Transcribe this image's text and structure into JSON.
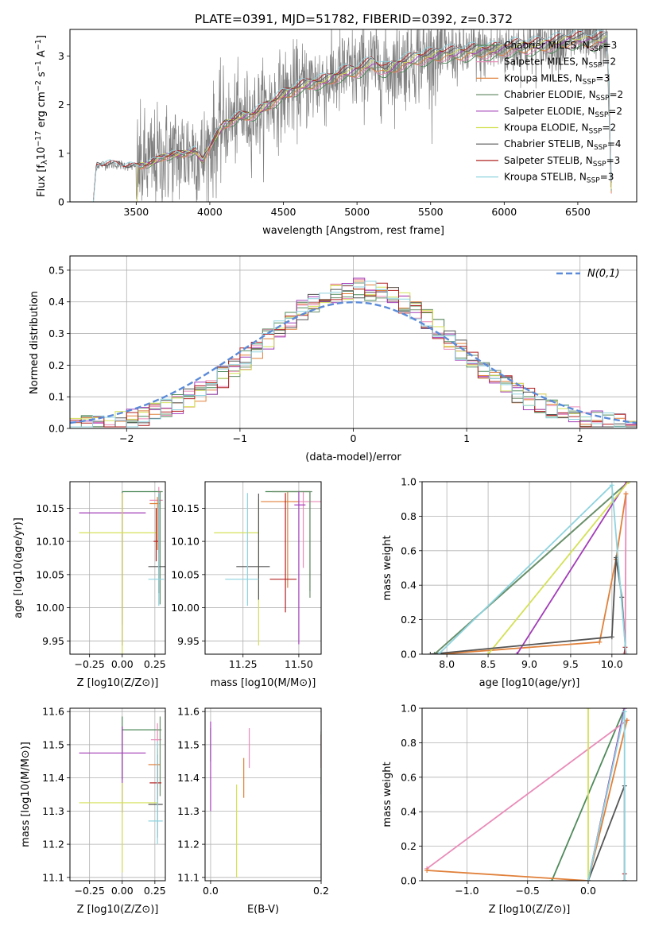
{
  "figure": {
    "title": "PLATE=0391, MJD=51782, FIBERID=0392, z=0.372"
  },
  "colors": {
    "data_gray": "#808080",
    "grid": "#b0b0b0",
    "gauss": "#5b8bd8"
  },
  "models": [
    {
      "name": "Chabrier MILES, N_SSP=3",
      "label_main": "Chabrier MILES, N",
      "sub": "SSP",
      "label_tail": "=3",
      "color": "#4f8a5b"
    },
    {
      "name": "Salpeter MILES, N_SSP=2",
      "label_main": "Salpeter MILES, N",
      "sub": "SSP",
      "label_tail": "=2",
      "color": "#e98bb8"
    },
    {
      "name": "Kroupa MILES, N_SSP=3",
      "label_main": "Kroupa MILES, N",
      "sub": "SSP",
      "label_tail": "=3",
      "color": "#e0803a"
    },
    {
      "name": "Chabrier ELODIE, N_SSP=2",
      "label_main": "Chabrier ELODIE, N",
      "sub": "SSP",
      "label_tail": "=2",
      "color": "#6a8f6a"
    },
    {
      "name": "Salpeter ELODIE, N_SSP=2",
      "label_main": "Salpeter ELODIE, N",
      "sub": "SSP",
      "label_tail": "=2",
      "color": "#a23db8"
    },
    {
      "name": "Kroupa ELODIE, N_SSP=2",
      "label_main": "Kroupa ELODIE, N",
      "sub": "SSP",
      "label_tail": "=2",
      "color": "#d4e157"
    },
    {
      "name": "Chabrier STELIB, N_SSP=4",
      "label_main": "Chabrier STELIB, N",
      "sub": "SSP",
      "label_tail": "=4",
      "color": "#555555"
    },
    {
      "name": "Salpeter STELIB, N_SSP=3",
      "label_main": "Salpeter STELIB, N",
      "sub": "SSP",
      "label_tail": "=3",
      "color": "#b22222"
    },
    {
      "name": "Kroupa STELIB, N_SSP=3",
      "label_main": "Kroupa STELIB, N",
      "sub": "SSP",
      "label_tail": "=3",
      "color": "#8fd3df"
    }
  ],
  "chart_data": [
    {
      "id": "spectrum",
      "type": "line",
      "title": "PLATE=0391, MJD=51782, FIBERID=0392, z=0.372",
      "xlabel": "wavelength [Angstrom, rest frame]",
      "ylabel": "Flux [f_λ 10^-17 erg cm^-2 s^-1 A^-1]",
      "xlim": [
        3050,
        6900
      ],
      "ylim": [
        0,
        3.55
      ],
      "xticks": [
        3500,
        4000,
        4500,
        5000,
        5500,
        6000,
        6500
      ],
      "yticks": [
        0,
        1,
        2,
        3
      ],
      "legend": "upper right",
      "continuum": [
        [
          3210,
          0.0
        ],
        [
          3230,
          0.75
        ],
        [
          3300,
          0.78
        ],
        [
          3400,
          0.76
        ],
        [
          3500,
          0.72
        ],
        [
          3600,
          0.8
        ],
        [
          3700,
          0.95
        ],
        [
          3800,
          0.98
        ],
        [
          3900,
          1.05
        ],
        [
          3950,
          0.85
        ],
        [
          4000,
          1.15
        ],
        [
          4100,
          1.6
        ],
        [
          4200,
          1.75
        ],
        [
          4300,
          1.8
        ],
        [
          4400,
          2.0
        ],
        [
          4500,
          2.2
        ],
        [
          4600,
          2.35
        ],
        [
          4700,
          2.45
        ],
        [
          4800,
          2.5
        ],
        [
          4900,
          2.65
        ],
        [
          5000,
          2.7
        ],
        [
          5100,
          2.85
        ],
        [
          5200,
          2.7
        ],
        [
          5300,
          2.85
        ],
        [
          5400,
          2.95
        ],
        [
          5500,
          3.0
        ],
        [
          5600,
          3.05
        ],
        [
          5700,
          3.05
        ],
        [
          5800,
          3.1
        ],
        [
          5900,
          3.1
        ],
        [
          6000,
          3.15
        ],
        [
          6100,
          3.2
        ],
        [
          6200,
          3.2
        ],
        [
          6300,
          3.25
        ],
        [
          6400,
          3.3
        ],
        [
          6500,
          3.35
        ],
        [
          6600,
          3.3
        ],
        [
          6700,
          3.35
        ],
        [
          6730,
          0.0
        ]
      ]
    },
    {
      "id": "residuals",
      "type": "histogram",
      "xlabel": "(data-model)/error",
      "ylabel": "Normed distribution",
      "xlim": [
        -2.5,
        2.5
      ],
      "ylim": [
        0,
        0.545
      ],
      "xticks": [
        -2,
        -1,
        0,
        1,
        2
      ],
      "yticks": [
        0.0,
        0.1,
        0.2,
        0.3,
        0.4,
        0.5
      ],
      "bin_edges_start": -2.5,
      "bin_width": 0.1,
      "gauss_label": "N(0,1)",
      "legend": "upper right"
    },
    {
      "id": "age-vs-Z",
      "type": "scatter",
      "xlabel": "Z [log10(Z/Z⊙)]",
      "ylabel": "age [log10(age/yr)]",
      "xlim": [
        -0.4,
        0.33
      ],
      "ylim": [
        9.93,
        10.19
      ],
      "xticks": [
        -0.25,
        0.0,
        0.25
      ],
      "yticks": [
        9.95,
        10.0,
        10.05,
        10.1,
        10.15
      ],
      "points": [
        {
          "x": 0.0,
          "y": 10.175,
          "xerr": [
            0.0,
            0.3
          ],
          "yerr": [
            0.2,
            0.0
          ],
          "c": 0
        },
        {
          "x": 0.28,
          "y": 10.162,
          "xerr": [
            0.07,
            0.03
          ],
          "yerr": [
            0.08,
            0.02
          ],
          "c": 1
        },
        {
          "x": 0.27,
          "y": 10.157,
          "xerr": [
            0.06,
            0.02
          ],
          "yerr": [
            0.07,
            0.01
          ],
          "c": 2
        },
        {
          "x": 0.29,
          "y": 10.175,
          "xerr": [
            0.02,
            0.02
          ],
          "yerr": [
            0.17,
            0.0
          ],
          "c": 3
        },
        {
          "x": 0.0,
          "y": 10.143,
          "xerr": [
            0.33,
            0.18
          ],
          "yerr": [
            0.2,
            0.03
          ],
          "c": 4
        },
        {
          "x": 0.0,
          "y": 10.113,
          "xerr": [
            0.33,
            0.27
          ],
          "yerr": [
            0.2,
            0.06
          ],
          "c": 5
        },
        {
          "x": 0.28,
          "y": 10.062,
          "xerr": [
            0.08,
            0.05
          ],
          "yerr": [
            0.04,
            0.11
          ],
          "c": 6
        },
        {
          "x": 0.26,
          "y": 10.1,
          "xerr": [
            0.02,
            0.02
          ],
          "yerr": [
            0.03,
            0.05
          ],
          "c": 7
        },
        {
          "x": 0.28,
          "y": 10.043,
          "xerr": [
            0.08,
            0.04
          ],
          "yerr": [
            0.04,
            0.13
          ],
          "c": 8
        }
      ]
    },
    {
      "id": "age-vs-mass",
      "type": "scatter",
      "xlabel": "mass [log10(M/M⊙)]",
      "ylabel": "",
      "xlim": [
        11.08,
        11.6
      ],
      "ylim": [
        9.93,
        10.19
      ],
      "xticks": [
        11.25,
        11.5
      ],
      "yticks": [
        9.95,
        10.0,
        10.05,
        10.1,
        10.15
      ],
      "points": [
        {
          "x": 11.55,
          "y": 10.175,
          "xerr": [
            0.2,
            0.0
          ],
          "yerr": [
            0.15,
            0.0
          ],
          "c": 0
        },
        {
          "x": 11.52,
          "y": 10.16,
          "xerr": [
            0.05,
            0.08
          ],
          "yerr": [
            0.1,
            0.015
          ],
          "c": 1
        },
        {
          "x": 11.45,
          "y": 10.16,
          "xerr": [
            0.12,
            0.05
          ],
          "yerr": [
            0.13,
            0.015
          ],
          "c": 2
        },
        {
          "x": 11.55,
          "y": 10.175,
          "xerr": [
            0.17,
            0.01
          ],
          "yerr": [
            0.16,
            0.0
          ],
          "c": 3
        },
        {
          "x": 11.5,
          "y": 10.155,
          "xerr": [
            0.02,
            0.03
          ],
          "yerr": [
            0.21,
            0.02
          ],
          "c": 4
        },
        {
          "x": 11.32,
          "y": 10.113,
          "xerr": [
            0.2,
            0.0
          ],
          "yerr": [
            0.17,
            0.05
          ],
          "c": 5
        },
        {
          "x": 11.32,
          "y": 10.062,
          "xerr": [
            0.1,
            0.05
          ],
          "yerr": [
            0.05,
            0.11
          ],
          "c": 6
        },
        {
          "x": 11.44,
          "y": 10.043,
          "xerr": [
            0.07,
            0.05
          ],
          "yerr": [
            0.05,
            0.13
          ],
          "c": 7
        },
        {
          "x": 11.27,
          "y": 10.043,
          "xerr": [
            0.1,
            0.05
          ],
          "yerr": [
            0.04,
            0.13
          ],
          "c": 8
        }
      ]
    },
    {
      "id": "mass-weight-vs-age",
      "type": "line",
      "xlabel": "age [log10(age/yr)]",
      "ylabel": "mass weight",
      "xlim": [
        7.7,
        10.3
      ],
      "ylim": [
        0,
        1.0
      ],
      "xticks": [
        8.0,
        8.5,
        9.0,
        9.5,
        10.0
      ],
      "yticks": [
        0.0,
        0.2,
        0.4,
        0.6,
        0.8,
        1.0
      ],
      "series": [
        {
          "c": 0,
          "x": [
            7.85,
            10.2
          ],
          "y": [
            0.0,
            1.0
          ]
        },
        {
          "c": 1,
          "x": [
            10.16,
            10.17
          ],
          "y": [
            0.0,
            0.93
          ]
        },
        {
          "c": 2,
          "x": [
            7.9,
            9.85,
            10.05,
            10.17
          ],
          "y": [
            0.0,
            0.07,
            0.55,
            0.93
          ]
        },
        {
          "c": 3,
          "x": [
            7.85,
            10.2
          ],
          "y": [
            0.0,
            1.0
          ]
        },
        {
          "c": 4,
          "x": [
            8.85,
            10.18
          ],
          "y": [
            0.0,
            1.0
          ]
        },
        {
          "c": 5,
          "x": [
            8.5,
            10.2
          ],
          "y": [
            0.0,
            1.0
          ]
        },
        {
          "c": 6,
          "x": [
            7.8,
            10.0,
            10.05,
            10.12,
            10.17
          ],
          "y": [
            0.0,
            0.1,
            0.56,
            0.33,
            0.0
          ]
        },
        {
          "c": 7,
          "x": [
            10.15,
            10.16
          ],
          "y": [
            0.0,
            0.04
          ]
        },
        {
          "c": 8,
          "x": [
            7.9,
            10.0,
            10.17
          ],
          "y": [
            0.0,
            0.98,
            0.0
          ]
        }
      ]
    },
    {
      "id": "mass-vs-Z",
      "type": "scatter",
      "xlabel": "Z [log10(Z/Z⊙)]",
      "ylabel": "mass [log10(M/M⊙)]",
      "xlim": [
        -0.4,
        0.33
      ],
      "ylim": [
        11.09,
        11.61
      ],
      "xticks": [
        -0.25,
        0.0,
        0.25
      ],
      "yticks": [
        11.1,
        11.2,
        11.3,
        11.4,
        11.5,
        11.6
      ],
      "points": [
        {
          "x": 0.0,
          "y": 11.545,
          "xerr": [
            0.0,
            0.3
          ],
          "yerr": [
            0.15,
            0.04
          ],
          "c": 0
        },
        {
          "x": 0.27,
          "y": 11.515,
          "xerr": [
            0.05,
            0.03
          ],
          "yerr": [
            0.05,
            0.05
          ],
          "c": 1
        },
        {
          "x": 0.27,
          "y": 11.44,
          "xerr": [
            0.07,
            0.02
          ],
          "yerr": [
            0.07,
            0.05
          ],
          "c": 2
        },
        {
          "x": 0.29,
          "y": 11.545,
          "xerr": [
            0.02,
            0.01
          ],
          "yerr": [
            0.2,
            0.04
          ],
          "c": 3
        },
        {
          "x": 0.0,
          "y": 11.475,
          "xerr": [
            0.33,
            0.18
          ],
          "yerr": [
            0.18,
            0.08
          ],
          "c": 4
        },
        {
          "x": 0.0,
          "y": 11.325,
          "xerr": [
            0.33,
            0.27
          ],
          "yerr": [
            0.21,
            0.06
          ],
          "c": 5
        },
        {
          "x": 0.27,
          "y": 11.32,
          "xerr": [
            0.07,
            0.04
          ],
          "yerr": [
            0.1,
            0.15
          ],
          "c": 6
        },
        {
          "x": 0.27,
          "y": 11.385,
          "xerr": [
            0.06,
            0.03
          ],
          "yerr": [
            0.05,
            0.06
          ],
          "c": 7
        },
        {
          "x": 0.27,
          "y": 11.27,
          "xerr": [
            0.07,
            0.04
          ],
          "yerr": [
            0.07,
            0.24
          ],
          "c": 8
        }
      ]
    },
    {
      "id": "mass-vs-ebv",
      "type": "scatter",
      "xlabel": "E(B-V)",
      "ylabel": "",
      "xlim": [
        -0.01,
        0.2
      ],
      "ylim": [
        11.09,
        11.61
      ],
      "xticks": [
        0.0,
        0.2
      ],
      "yticks": [
        11.1,
        11.2,
        11.3,
        11.4,
        11.5,
        11.6
      ],
      "points": [
        {
          "x": 0.0,
          "y": 11.5,
          "xerr": [
            0,
            0
          ],
          "yerr": [
            0.05,
            0.05
          ],
          "c": 0
        },
        {
          "x": 0.07,
          "y": 11.5,
          "xerr": [
            0,
            0
          ],
          "yerr": [
            0.07,
            0.05
          ],
          "c": 1
        },
        {
          "x": 0.06,
          "y": 11.41,
          "xerr": [
            0,
            0
          ],
          "yerr": [
            0.07,
            0.05
          ],
          "c": 2
        },
        {
          "x": 0.2,
          "y": 11.5,
          "xerr": [
            0,
            0
          ],
          "yerr": [
            0.15,
            0.04
          ],
          "c": 3
        },
        {
          "x": 0.0,
          "y": 11.47,
          "xerr": [
            0,
            0
          ],
          "yerr": [
            0.17,
            0.1
          ],
          "c": 4
        },
        {
          "x": 0.047,
          "y": 11.3,
          "xerr": [
            0,
            0
          ],
          "yerr": [
            0.2,
            0.08
          ],
          "c": 5
        },
        {
          "x": 0.2,
          "y": 11.3,
          "xerr": [
            0,
            0
          ],
          "yerr": [
            0.2,
            0.1
          ],
          "c": 6
        },
        {
          "x": 0.2,
          "y": 11.47,
          "xerr": [
            0,
            0
          ],
          "yerr": [
            0.04,
            0.06
          ],
          "c": 7
        },
        {
          "x": 0.2,
          "y": 11.3,
          "xerr": [
            0,
            0
          ],
          "yerr": [
            0.06,
            0.07
          ],
          "c": 8
        }
      ]
    },
    {
      "id": "mass-weight-vs-Z",
      "type": "line",
      "xlabel": "Z [log10(Z/Z⊙)]",
      "ylabel": "mass weight",
      "xlim": [
        -1.37,
        0.4
      ],
      "ylim": [
        0,
        1.0
      ],
      "xticks": [
        -1.0,
        -0.5,
        0.0
      ],
      "yticks": [
        0.0,
        0.2,
        0.4,
        0.6,
        0.8,
        1.0
      ],
      "series": [
        {
          "c": 0,
          "x": [
            -0.3,
            0.3
          ],
          "y": [
            0.0,
            1.0
          ]
        },
        {
          "c": 1,
          "x": [
            -1.33,
            0.32
          ],
          "y": [
            0.07,
            0.93
          ]
        },
        {
          "c": 2,
          "x": [
            -1.33,
            0.0,
            0.32
          ],
          "y": [
            0.06,
            0.0,
            0.93
          ]
        },
        {
          "c": 3,
          "x": [
            0.0,
            0.3
          ],
          "y": [
            0.0,
            1.0
          ]
        },
        {
          "c": 4,
          "x": [
            0.0,
            0.3
          ],
          "y": [
            0.0,
            1.0
          ]
        },
        {
          "c": 5,
          "x": [
            0.0,
            0.0
          ],
          "y": [
            0.0,
            1.0
          ]
        },
        {
          "c": 6,
          "x": [
            0.0,
            0.3,
            0.3
          ],
          "y": [
            0.0,
            0.55,
            0.0
          ]
        },
        {
          "c": 7,
          "x": [
            0.3,
            0.3
          ],
          "y": [
            0.0,
            0.04
          ]
        },
        {
          "c": 8,
          "x": [
            0.0,
            0.3,
            0.3
          ],
          "y": [
            0.0,
            0.98,
            0.0
          ]
        }
      ]
    }
  ]
}
